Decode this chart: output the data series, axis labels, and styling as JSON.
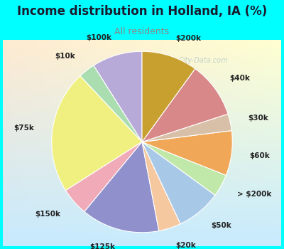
{
  "title": "Income distribution in Holland, IA (%)",
  "subtitle": "All residents",
  "title_color": "#1a1a2e",
  "subtitle_color": "#888888",
  "bg_top": "#00ffff",
  "bg_chart_color": "#d4ede4",
  "watermark": "City-Data.com",
  "labels": [
    "$100k",
    "$10k",
    "$75k",
    "$150k",
    "$125k",
    "$20k",
    "$50k",
    "> $200k",
    "$60k",
    "$30k",
    "$40k",
    "$200k"
  ],
  "sizes": [
    9,
    3,
    22,
    5,
    14,
    4,
    8,
    4,
    8,
    3,
    10,
    10
  ],
  "colors": [
    "#b8aad8",
    "#aaddb0",
    "#f0f080",
    "#f0aab8",
    "#9090cc",
    "#f5c8a0",
    "#a8c8e8",
    "#c0e8a8",
    "#f0a858",
    "#d8c0a8",
    "#d88888",
    "#c8a030"
  ],
  "startangle": 90,
  "label_fontsize": 7.5,
  "title_fontsize": 12,
  "subtitle_fontsize": 9
}
